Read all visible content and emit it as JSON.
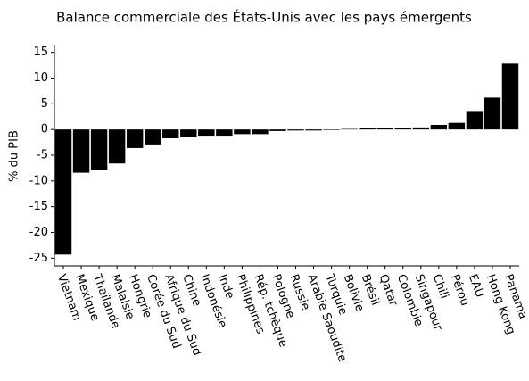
{
  "chart_data": {
    "type": "bar",
    "title": "Balance commerciale des États-Unis avec les pays émergents",
    "y_label": "% du PIB",
    "categories": [
      "Vietnam",
      "Mexique",
      "Thaïlande",
      "Malaisie",
      "Hongrie",
      "Corée du Sud",
      "Afrique du Sud",
      "Chine",
      "Indonésie",
      "Inde",
      "Philippines",
      "Rép. tchèque",
      "Pologne",
      "Russie",
      "Arabie Saoudite",
      "Turquie",
      "Bolivie",
      "Brésil",
      "Qatar",
      "Colombie",
      "Singapour",
      "Chili",
      "Pérou",
      "EAU",
      "Hong Kong",
      "Panama"
    ],
    "values": [
      -24.3,
      -8.4,
      -7.8,
      -6.6,
      -3.6,
      -2.9,
      -1.7,
      -1.5,
      -1.2,
      -1.2,
      -0.9,
      -0.9,
      -0.3,
      -0.2,
      -0.2,
      -0.1,
      0.1,
      0.2,
      0.3,
      0.3,
      0.4,
      0.9,
      1.3,
      3.6,
      6.2,
      12.8
    ],
    "color": "#000000",
    "ylim": [
      -26.5,
      16.5
    ],
    "yticks": [
      -25,
      -20,
      -15,
      -10,
      -5,
      0,
      5,
      10,
      15
    ]
  }
}
